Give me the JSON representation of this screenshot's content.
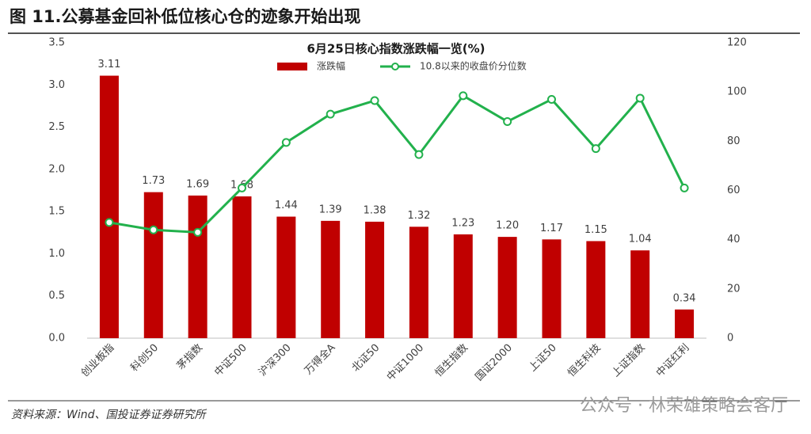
{
  "header": {
    "title": "图 11.公募基金回补低位核心仓的迹象开始出现"
  },
  "chart_data": {
    "type": "bar",
    "title": "6月25日核心指数涨跌幅一览(%)",
    "categories": [
      "创业板指",
      "科创50",
      "茅指数",
      "中证500",
      "沪深300",
      "万得全A",
      "北证50",
      "中证1000",
      "恒生指数",
      "国证2000",
      "上证50",
      "恒生科技",
      "上证指数",
      "中证红利"
    ],
    "series": [
      {
        "name": "涨跌幅",
        "type": "bar",
        "color": "#c00000",
        "values": [
          3.11,
          1.73,
          1.69,
          1.68,
          1.44,
          1.39,
          1.38,
          1.32,
          1.23,
          1.2,
          1.17,
          1.15,
          1.04,
          0.34
        ],
        "value_labels": [
          "3.11",
          "1.73",
          "1.69",
          "1.68",
          "1.44",
          "1.39",
          "1.38",
          "1.32",
          "1.23",
          "1.20",
          "1.17",
          "1.15",
          "1.04",
          "0.34"
        ]
      },
      {
        "name": "10.8以来的收盘价分位数",
        "type": "line",
        "axis": "y2",
        "color": "#22b14c",
        "values": [
          47,
          44,
          43,
          61,
          79.5,
          91,
          96.5,
          74.6,
          98.5,
          88,
          97,
          77,
          97.5,
          61
        ]
      }
    ],
    "ylim": [
      0,
      3.5
    ],
    "yticks": [
      {
        "value": 0,
        "label": "0.0"
      },
      0.5,
      {
        "value": 1,
        "label": "1.0"
      },
      1.5,
      {
        "value": 2,
        "label": "2.0"
      },
      2.5,
      {
        "value": 3,
        "label": "3.0"
      },
      3.5
    ],
    "y2lim": [
      0,
      120
    ],
    "y2ticks": [
      0,
      20,
      40,
      60,
      80,
      100,
      120
    ],
    "grid": false
  },
  "footer": {
    "source": "资料来源：Wind、国投证券证券研究所",
    "watermark": "公众号 · 林荣雄策略会客厅"
  }
}
